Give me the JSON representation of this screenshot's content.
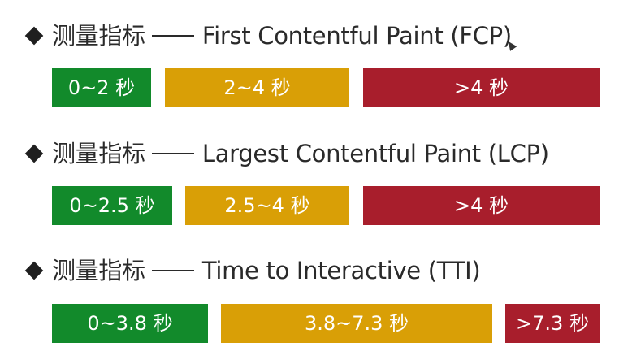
{
  "metrics": [
    {
      "prefix": "测量指标",
      "name": "First Contentful Paint (FCP)",
      "ranges": [
        {
          "label": "0~2 秒",
          "status": "good"
        },
        {
          "label": "2~4 秒",
          "status": "moderate"
        },
        {
          "label": ">4 秒",
          "status": "poor"
        }
      ]
    },
    {
      "prefix": "测量指标",
      "name": "Largest Contentful Paint (LCP)",
      "ranges": [
        {
          "label": "0~2.5 秒",
          "status": "good"
        },
        {
          "label": "2.5~4 秒",
          "status": "moderate"
        },
        {
          "label": ">4 秒",
          "status": "poor"
        }
      ]
    },
    {
      "prefix": "测量指标",
      "name": "Time to Interactive (TTI)",
      "ranges": [
        {
          "label": "0~3.8 秒",
          "status": "good"
        },
        {
          "label": "3.8~7.3 秒",
          "status": "moderate"
        },
        {
          "label": ">7.3 秒",
          "status": "poor"
        }
      ]
    }
  ],
  "colors": {
    "good": "#128a2b",
    "moderate": "#d99f06",
    "poor": "#a81e2c",
    "text": "#2a2a2a"
  },
  "icons": {
    "bullet": "diamond-bullet-icon",
    "cursor": "mouse-pointer-icon"
  }
}
